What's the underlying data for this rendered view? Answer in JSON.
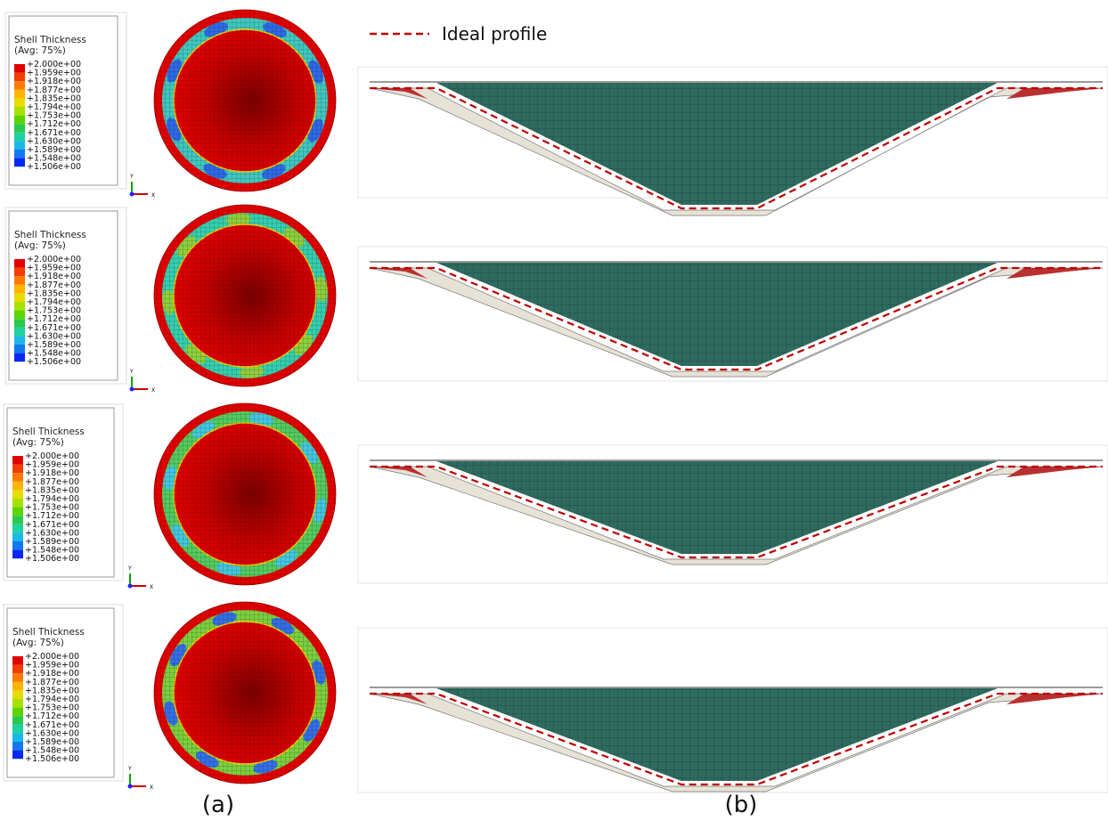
{
  "legend_profile": "Ideal profile",
  "panels": [
    {
      "legend": {
        "title": "Shell Thickness",
        "subtitle": "(Avg: 75%)",
        "levels": [
          "+2.000e+00",
          "+1.959e+00",
          "+1.918e+00",
          "+1.877e+00",
          "+1.835e+00",
          "+1.794e+00",
          "+1.753e+00",
          "+1.712e+00",
          "+1.671e+00",
          "+1.630e+00",
          "+1.589e+00",
          "+1.548e+00",
          "+1.506e+00"
        ]
      },
      "axes": {
        "y": "Y",
        "x": "X"
      }
    },
    {
      "legend": {
        "title": "Shell Thickness",
        "subtitle": "(Avg: 75%)",
        "levels": [
          "+2.000e+00",
          "+1.959e+00",
          "+1.918e+00",
          "+1.877e+00",
          "+1.835e+00",
          "+1.794e+00",
          "+1.753e+00",
          "+1.712e+00",
          "+1.671e+00",
          "+1.630e+00",
          "+1.589e+00",
          "+1.548e+00",
          "+1.506e+00"
        ]
      },
      "axes": {
        "y": "Y",
        "x": "X"
      }
    },
    {
      "legend": {
        "title": "Shell Thickness",
        "subtitle": "(Avg: 75%)",
        "levels": [
          "+2.000e+00",
          "+1.959e+00",
          "+1.918e+00",
          "+1.877e+00",
          "+1.835e+00",
          "+1.794e+00",
          "+1.753e+00",
          "+1.712e+00",
          "+1.671e+00",
          "+1.630e+00",
          "+1.589e+00",
          "+1.548e+00",
          "+1.506e+00"
        ]
      },
      "axes": {
        "y": "Y",
        "x": "X"
      }
    },
    {
      "legend": {
        "title": "Shell Thickness",
        "subtitle": "(Avg: 75%)",
        "levels": [
          "+2.000e+00",
          "+1.959e+00",
          "+1.918e+00",
          "+1.877e+00",
          "+1.835e+00",
          "+1.794e+00",
          "+1.753e+00",
          "+1.712e+00",
          "+1.671e+00",
          "+1.630e+00",
          "+1.589e+00",
          "+1.548e+00",
          "+1.506e+00"
        ]
      },
      "axes": {
        "y": "Y",
        "x": "X"
      }
    }
  ],
  "captions": {
    "a": "(a)",
    "b": "(b)"
  }
}
